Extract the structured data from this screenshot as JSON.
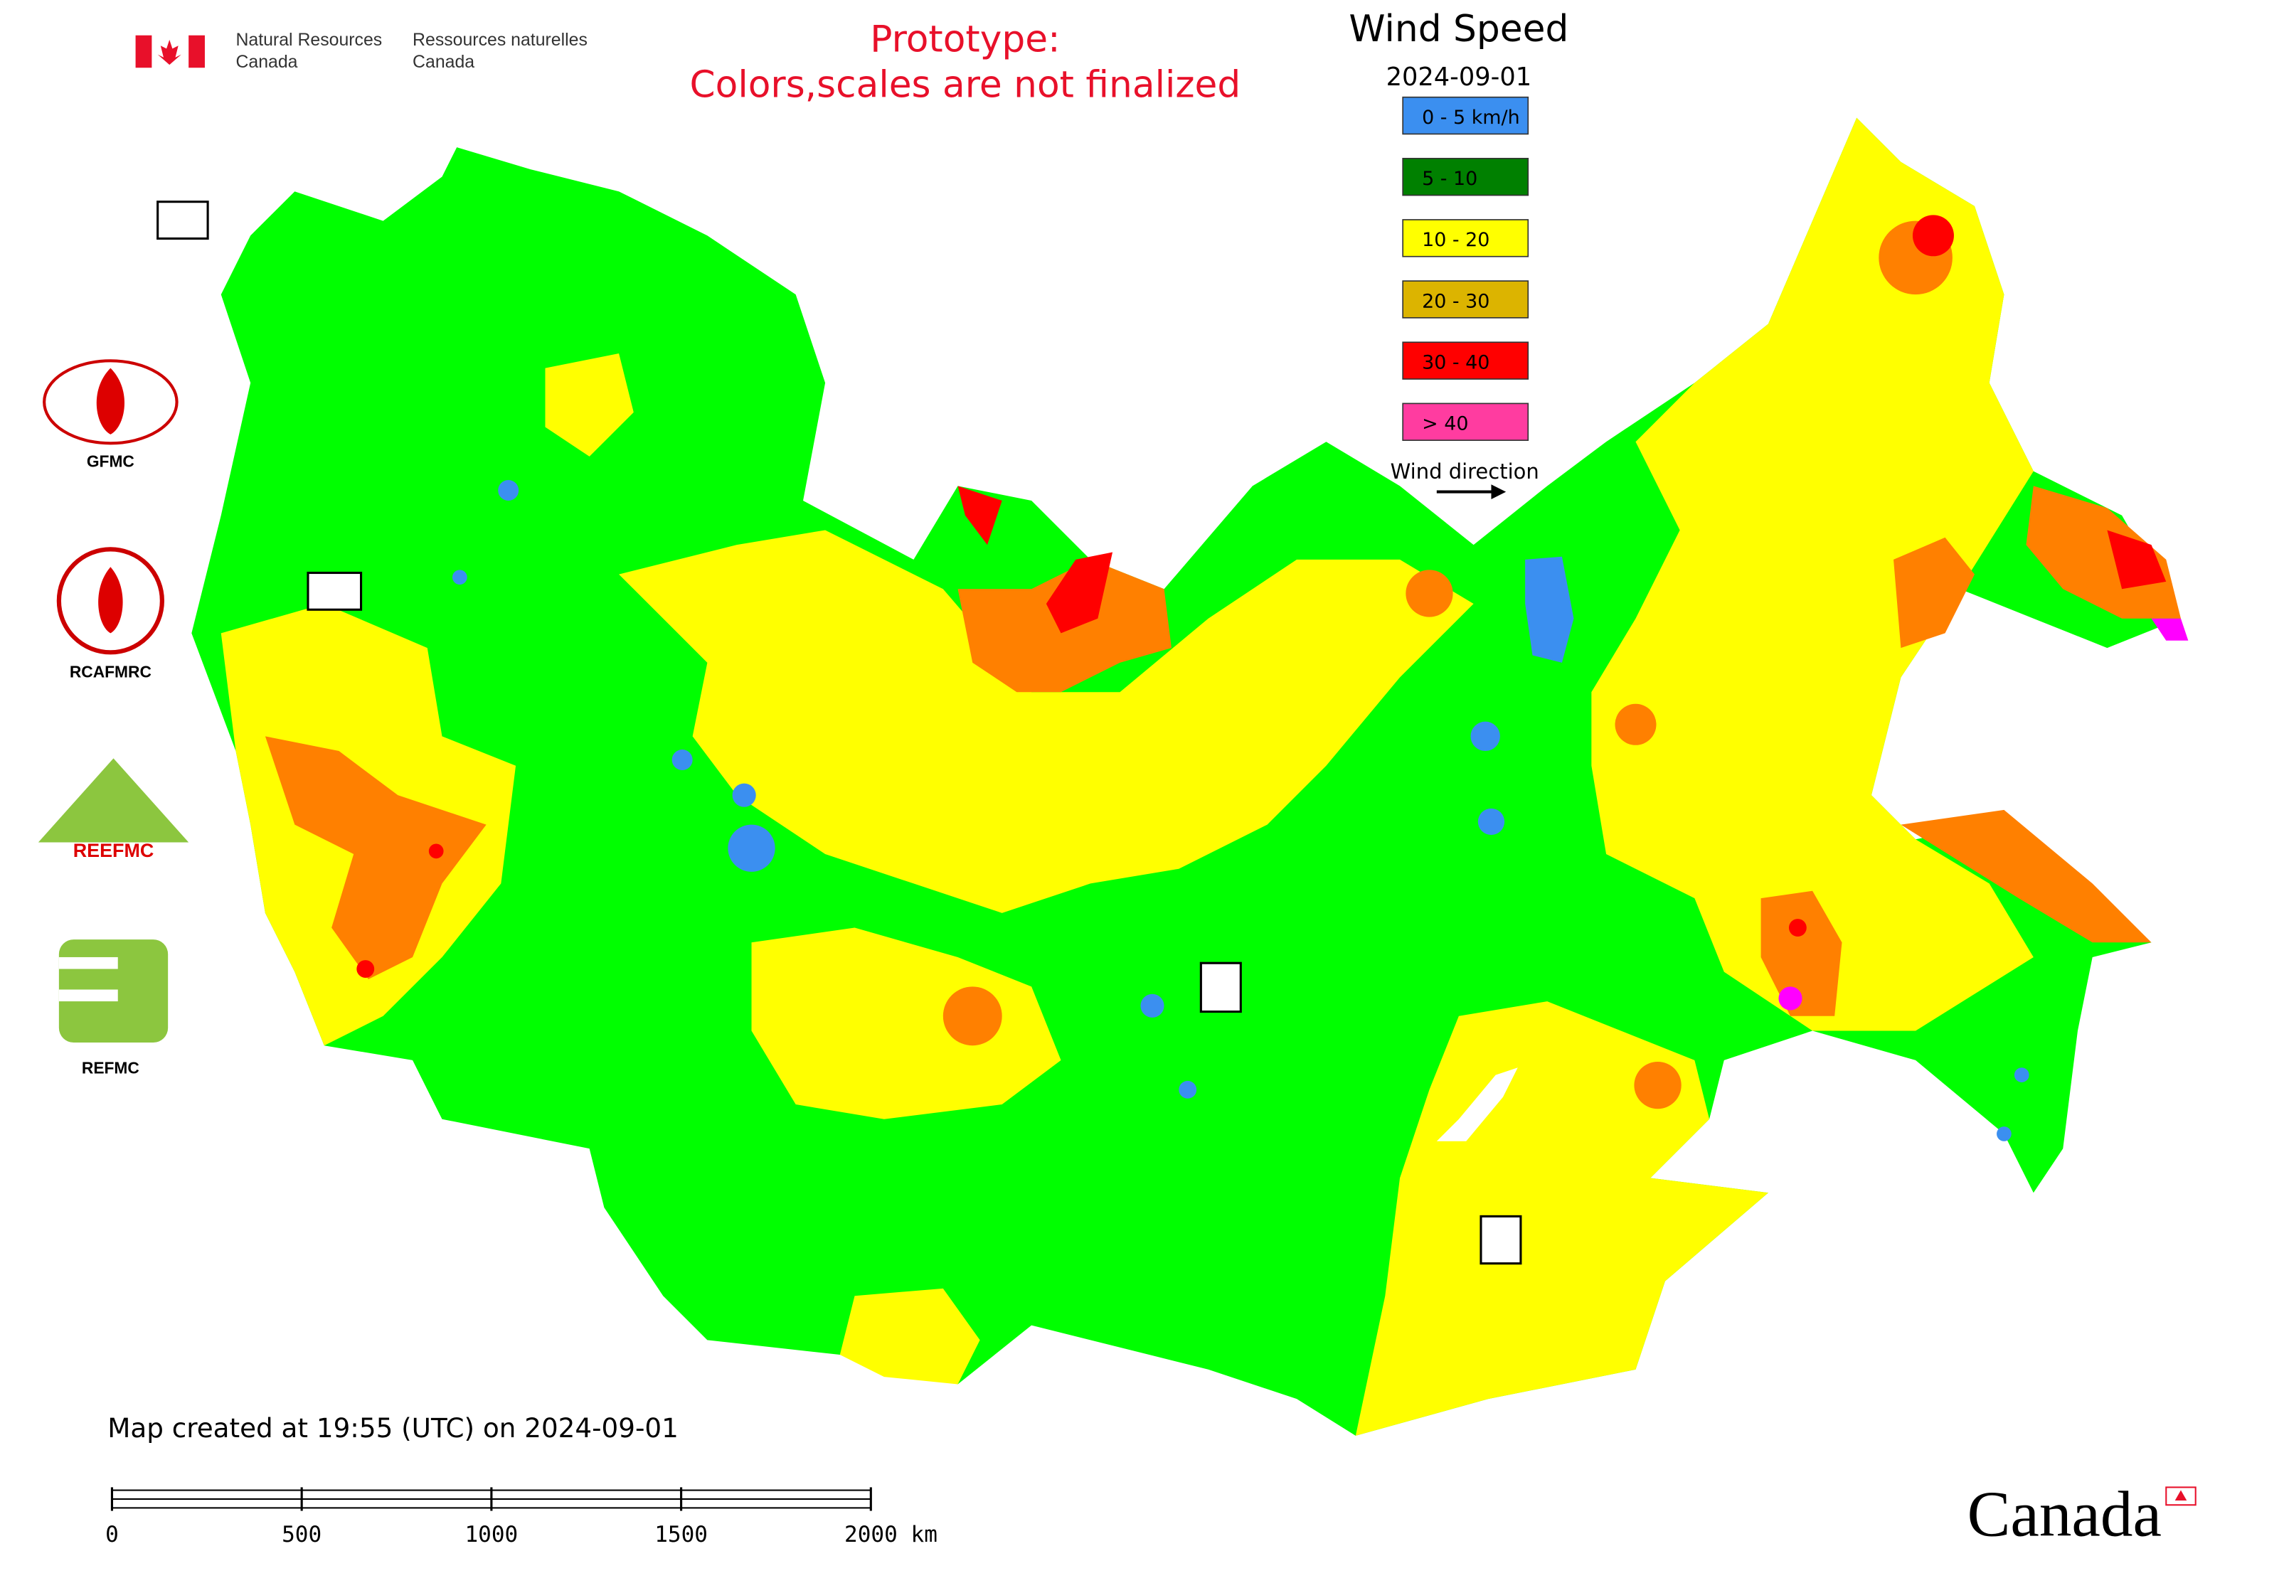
{
  "header": {
    "dept_en": [
      "Natural Resources",
      "Canada"
    ],
    "dept_fr": [
      "Ressources naturelles",
      "Canada"
    ]
  },
  "notice": [
    "Prototype:",
    "Colors,scales are not finalized"
  ],
  "legend": {
    "title": "Wind Speed",
    "date": "2024-09-01",
    "items": [
      {
        "label": "0 - 5 km/h",
        "color": "#3b8ff0"
      },
      {
        "label": "5 - 10",
        "color": "#008000"
      },
      {
        "label": "10 - 20",
        "color": "#ffff00"
      },
      {
        "label": "20 - 30",
        "color": "#dcb400"
      },
      {
        "label": "30 - 40",
        "color": "#ff0000"
      },
      {
        "label": "> 40",
        "color": "#ff3ca0"
      }
    ],
    "direction_label": "Wind direction"
  },
  "logos": [
    "GFMC",
    "RCAFMRC",
    "REEFMC",
    "REFMC"
  ],
  "footer": {
    "created": "Map created at 19:55 (UTC) on 2024-09-01",
    "scale_bar": {
      "ticks": [
        0,
        500,
        1000,
        1500,
        {
          "value": 2000,
          "label": "2000 km"
        }
      ]
    },
    "wordmark": "Canada"
  }
}
